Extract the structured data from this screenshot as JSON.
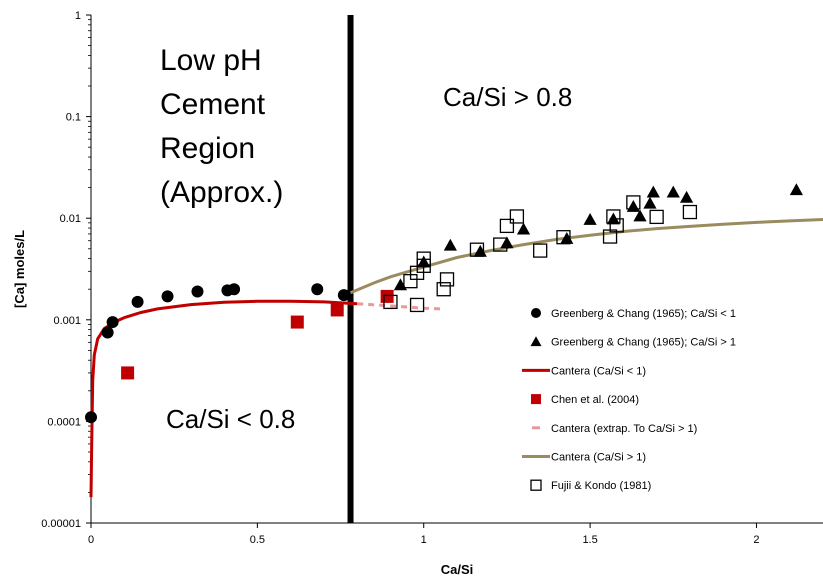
{
  "chart_data": {
    "type": "scatter",
    "xlabel": "Ca/Si",
    "ylabel": "[Ca] moles/L",
    "xlim": [
      0,
      2.2
    ],
    "ylim": [
      1e-05,
      1
    ],
    "y_scale": "log",
    "x_ticks": [
      0,
      0.5,
      1,
      1.5,
      2
    ],
    "x_tick_labels": [
      "0",
      "0.5",
      "1",
      "1.5",
      "2"
    ],
    "y_ticks": [
      1e-05,
      0.0001,
      0.001,
      0.01,
      0.1,
      1
    ],
    "y_tick_labels": [
      "0.00001",
      "0.0001",
      "0.001",
      "0.01",
      "0.1",
      "1"
    ],
    "grid": false,
    "legend_position": "lower-right",
    "divider_x": 0.78,
    "annotations": [
      {
        "id": "region-title",
        "lines": [
          "Low pH",
          "Cement",
          "Region",
          "(Approx.)"
        ],
        "x": 0.2,
        "y": 0.5
      },
      {
        "id": "ratio-high",
        "text": "Ca/Si > 0.8",
        "x": 1.2,
        "y": 0.23
      },
      {
        "id": "ratio-low",
        "text": "Ca/Si < 0.8",
        "x": 0.38,
        "y": 0.00011
      }
    ],
    "series": [
      {
        "name": "Greenberg & Chang (1965); Ca/Si < 1",
        "kind": "scatter",
        "marker": "circle",
        "color": "#000000",
        "points": [
          [
            0.0,
            0.00011
          ],
          [
            0.05,
            0.00075
          ],
          [
            0.065,
            0.00095
          ],
          [
            0.14,
            0.0015
          ],
          [
            0.23,
            0.0017
          ],
          [
            0.32,
            0.0019
          ],
          [
            0.41,
            0.00195
          ],
          [
            0.43,
            0.002
          ],
          [
            0.68,
            0.002
          ],
          [
            0.76,
            0.00175
          ]
        ]
      },
      {
        "name": "Greenberg & Chang (1965); Ca/Si > 1",
        "kind": "scatter",
        "marker": "triangle",
        "color": "#000000",
        "points": [
          [
            0.93,
            0.0022
          ],
          [
            1.0,
            0.0037
          ],
          [
            1.08,
            0.0054
          ],
          [
            1.17,
            0.0047
          ],
          [
            1.25,
            0.0057
          ],
          [
            1.3,
            0.0078
          ],
          [
            1.43,
            0.0063
          ],
          [
            1.5,
            0.0097
          ],
          [
            1.57,
            0.0098
          ],
          [
            1.63,
            0.013
          ],
          [
            1.65,
            0.0105
          ],
          [
            1.68,
            0.014
          ],
          [
            1.69,
            0.018
          ],
          [
            1.75,
            0.018
          ],
          [
            1.79,
            0.016
          ],
          [
            2.12,
            0.019
          ]
        ]
      },
      {
        "name": "Cantera (Ca/Si < 1)",
        "kind": "line",
        "color": "#c00000",
        "points": [
          [
            0.0,
            1.8e-05
          ],
          [
            0.002,
            6e-05
          ],
          [
            0.005,
            0.00025
          ],
          [
            0.01,
            0.00045
          ],
          [
            0.02,
            0.00065
          ],
          [
            0.04,
            0.00082
          ],
          [
            0.07,
            0.00095
          ],
          [
            0.1,
            0.00105
          ],
          [
            0.15,
            0.00118
          ],
          [
            0.2,
            0.00128
          ],
          [
            0.3,
            0.00141
          ],
          [
            0.4,
            0.00149
          ],
          [
            0.5,
            0.00152
          ],
          [
            0.6,
            0.00152
          ],
          [
            0.7,
            0.0015
          ],
          [
            0.8,
            0.00144
          ]
        ]
      },
      {
        "name": "Chen et al. (2004)",
        "kind": "scatter",
        "marker": "square",
        "color": "#c00000",
        "points": [
          [
            0.11,
            0.0003
          ],
          [
            0.62,
            0.00095
          ],
          [
            0.74,
            0.00125
          ],
          [
            0.89,
            0.0017
          ]
        ]
      },
      {
        "name": "Cantera (extrap. To Ca/Si > 1)",
        "kind": "line",
        "dashed": true,
        "color": "#e89a9a",
        "points": [
          [
            0.8,
            0.00144
          ],
          [
            0.9,
            0.00137
          ],
          [
            1.0,
            0.0013
          ],
          [
            1.05,
            0.00128
          ]
        ]
      },
      {
        "name": "Cantera (Ca/Si > 1)",
        "kind": "line",
        "color": "#9a8c5e",
        "points": [
          [
            0.78,
            0.00185
          ],
          [
            0.85,
            0.0023
          ],
          [
            0.9,
            0.00265
          ],
          [
            1.0,
            0.0033
          ],
          [
            1.1,
            0.0041
          ],
          [
            1.2,
            0.0048
          ],
          [
            1.3,
            0.0055
          ],
          [
            1.4,
            0.0062
          ],
          [
            1.5,
            0.0068
          ],
          [
            1.6,
            0.0074
          ],
          [
            1.7,
            0.0079
          ],
          [
            1.8,
            0.0083
          ],
          [
            1.9,
            0.0087
          ],
          [
            2.0,
            0.0091
          ],
          [
            2.1,
            0.0094
          ],
          [
            2.2,
            0.0097
          ]
        ]
      },
      {
        "name": "Fujii & Kondo (1981)",
        "kind": "scatter",
        "marker": "open-square",
        "color": "#000000",
        "points": [
          [
            0.9,
            0.0015
          ],
          [
            0.96,
            0.0024
          ],
          [
            0.98,
            0.0029
          ],
          [
            0.98,
            0.0014
          ],
          [
            1.0,
            0.004
          ],
          [
            1.0,
            0.0034
          ],
          [
            1.06,
            0.002
          ],
          [
            1.07,
            0.0025
          ],
          [
            1.16,
            0.0049
          ],
          [
            1.23,
            0.0055
          ],
          [
            1.25,
            0.0084
          ],
          [
            1.28,
            0.0104
          ],
          [
            1.35,
            0.0048
          ],
          [
            1.42,
            0.0065
          ],
          [
            1.56,
            0.0066
          ],
          [
            1.57,
            0.0104
          ],
          [
            1.58,
            0.0085
          ],
          [
            1.63,
            0.0143
          ],
          [
            1.7,
            0.0103
          ],
          [
            1.8,
            0.0115
          ]
        ]
      }
    ]
  }
}
